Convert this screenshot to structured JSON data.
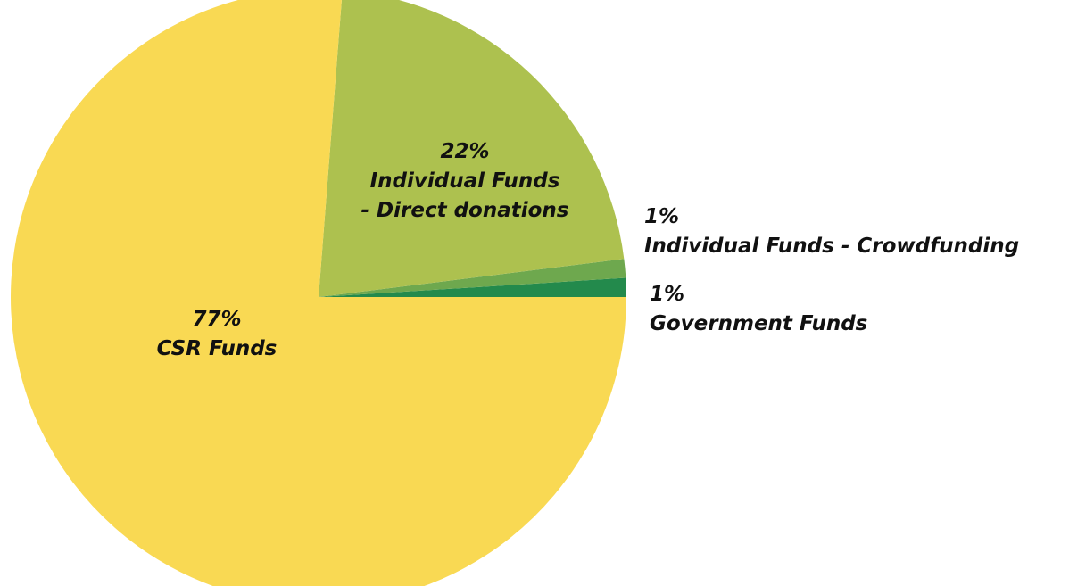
{
  "chart_data": {
    "type": "pie",
    "title": "",
    "slices": [
      {
        "label": "CSR Funds",
        "value": 77,
        "value_label": "77%",
        "color": "#F9D953",
        "label_lines": [
          "CSR Funds"
        ]
      },
      {
        "label": "Individual Funds - Direct donations",
        "value": 22,
        "value_label": "22%",
        "color": "#ADC14F",
        "label_lines": [
          "Individual Funds",
          "- Direct donations"
        ]
      },
      {
        "label": "Individual Funds - Crowdfunding",
        "value": 1,
        "value_label": "1%",
        "color": "#6EA84E",
        "label_lines": [
          "Individual Funds - Crowdfunding"
        ]
      },
      {
        "label": "Government Funds",
        "value": 1,
        "value_label": "1%",
        "color": "#238A4C",
        "label_lines": [
          "Government Funds"
        ]
      }
    ],
    "legend": "none",
    "label_style": "bold-italic"
  }
}
